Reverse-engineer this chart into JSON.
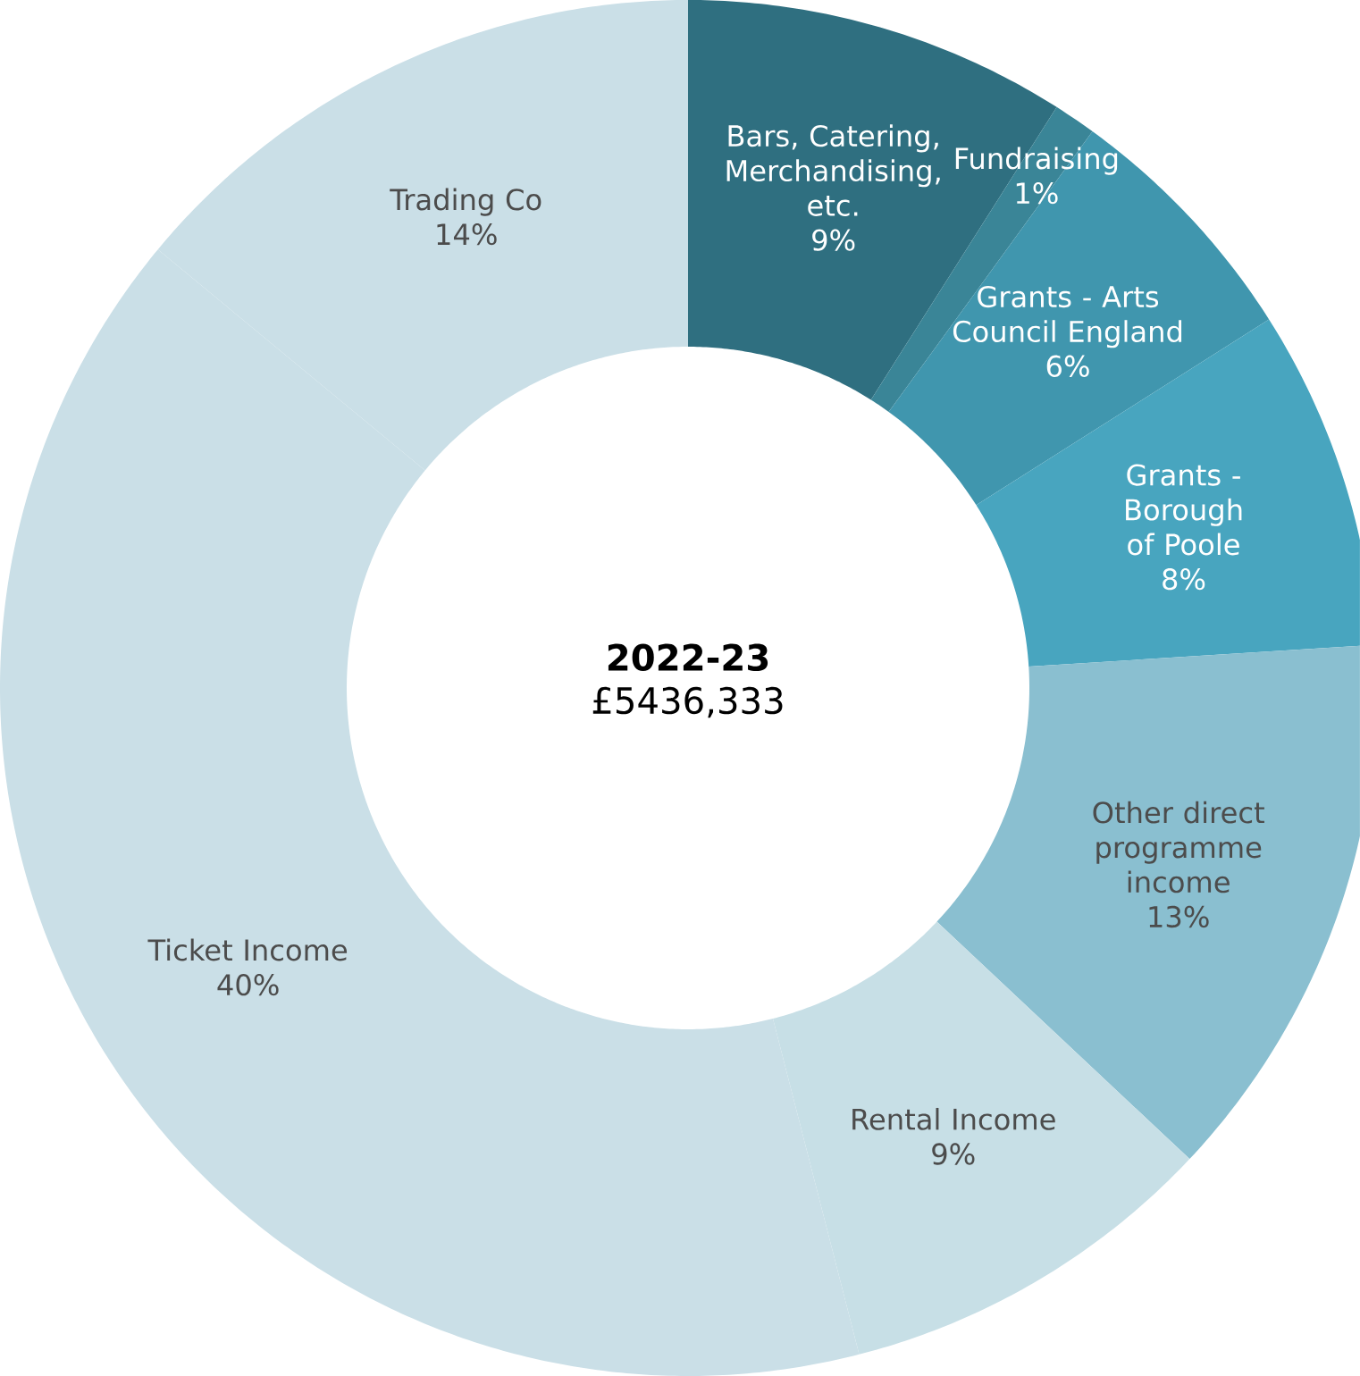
{
  "chart_data": {
    "type": "donut",
    "title": "2022-23",
    "subtitle": "£5436,333",
    "categories": [
      "Bars, Catering, Merchandising, etc.",
      "Fundraising",
      "Grants - Arts Council England",
      "Grants - Borough of Poole",
      "Other direct programme income",
      "Rental Income",
      "Ticket Income",
      "Trading Co"
    ],
    "values": [
      9,
      1,
      6,
      8,
      13,
      9,
      40,
      14
    ],
    "value_labels": [
      "9%",
      "1%",
      "6%",
      "8%",
      "13%",
      "9%",
      "40%",
      "14%"
    ],
    "colors": [
      "#2f6f80",
      "#3a8597",
      "#4096ae",
      "#48a5bf",
      "#8abfd0",
      "#c7dfe6",
      "#cadfe7",
      "#cadfe7"
    ]
  }
}
